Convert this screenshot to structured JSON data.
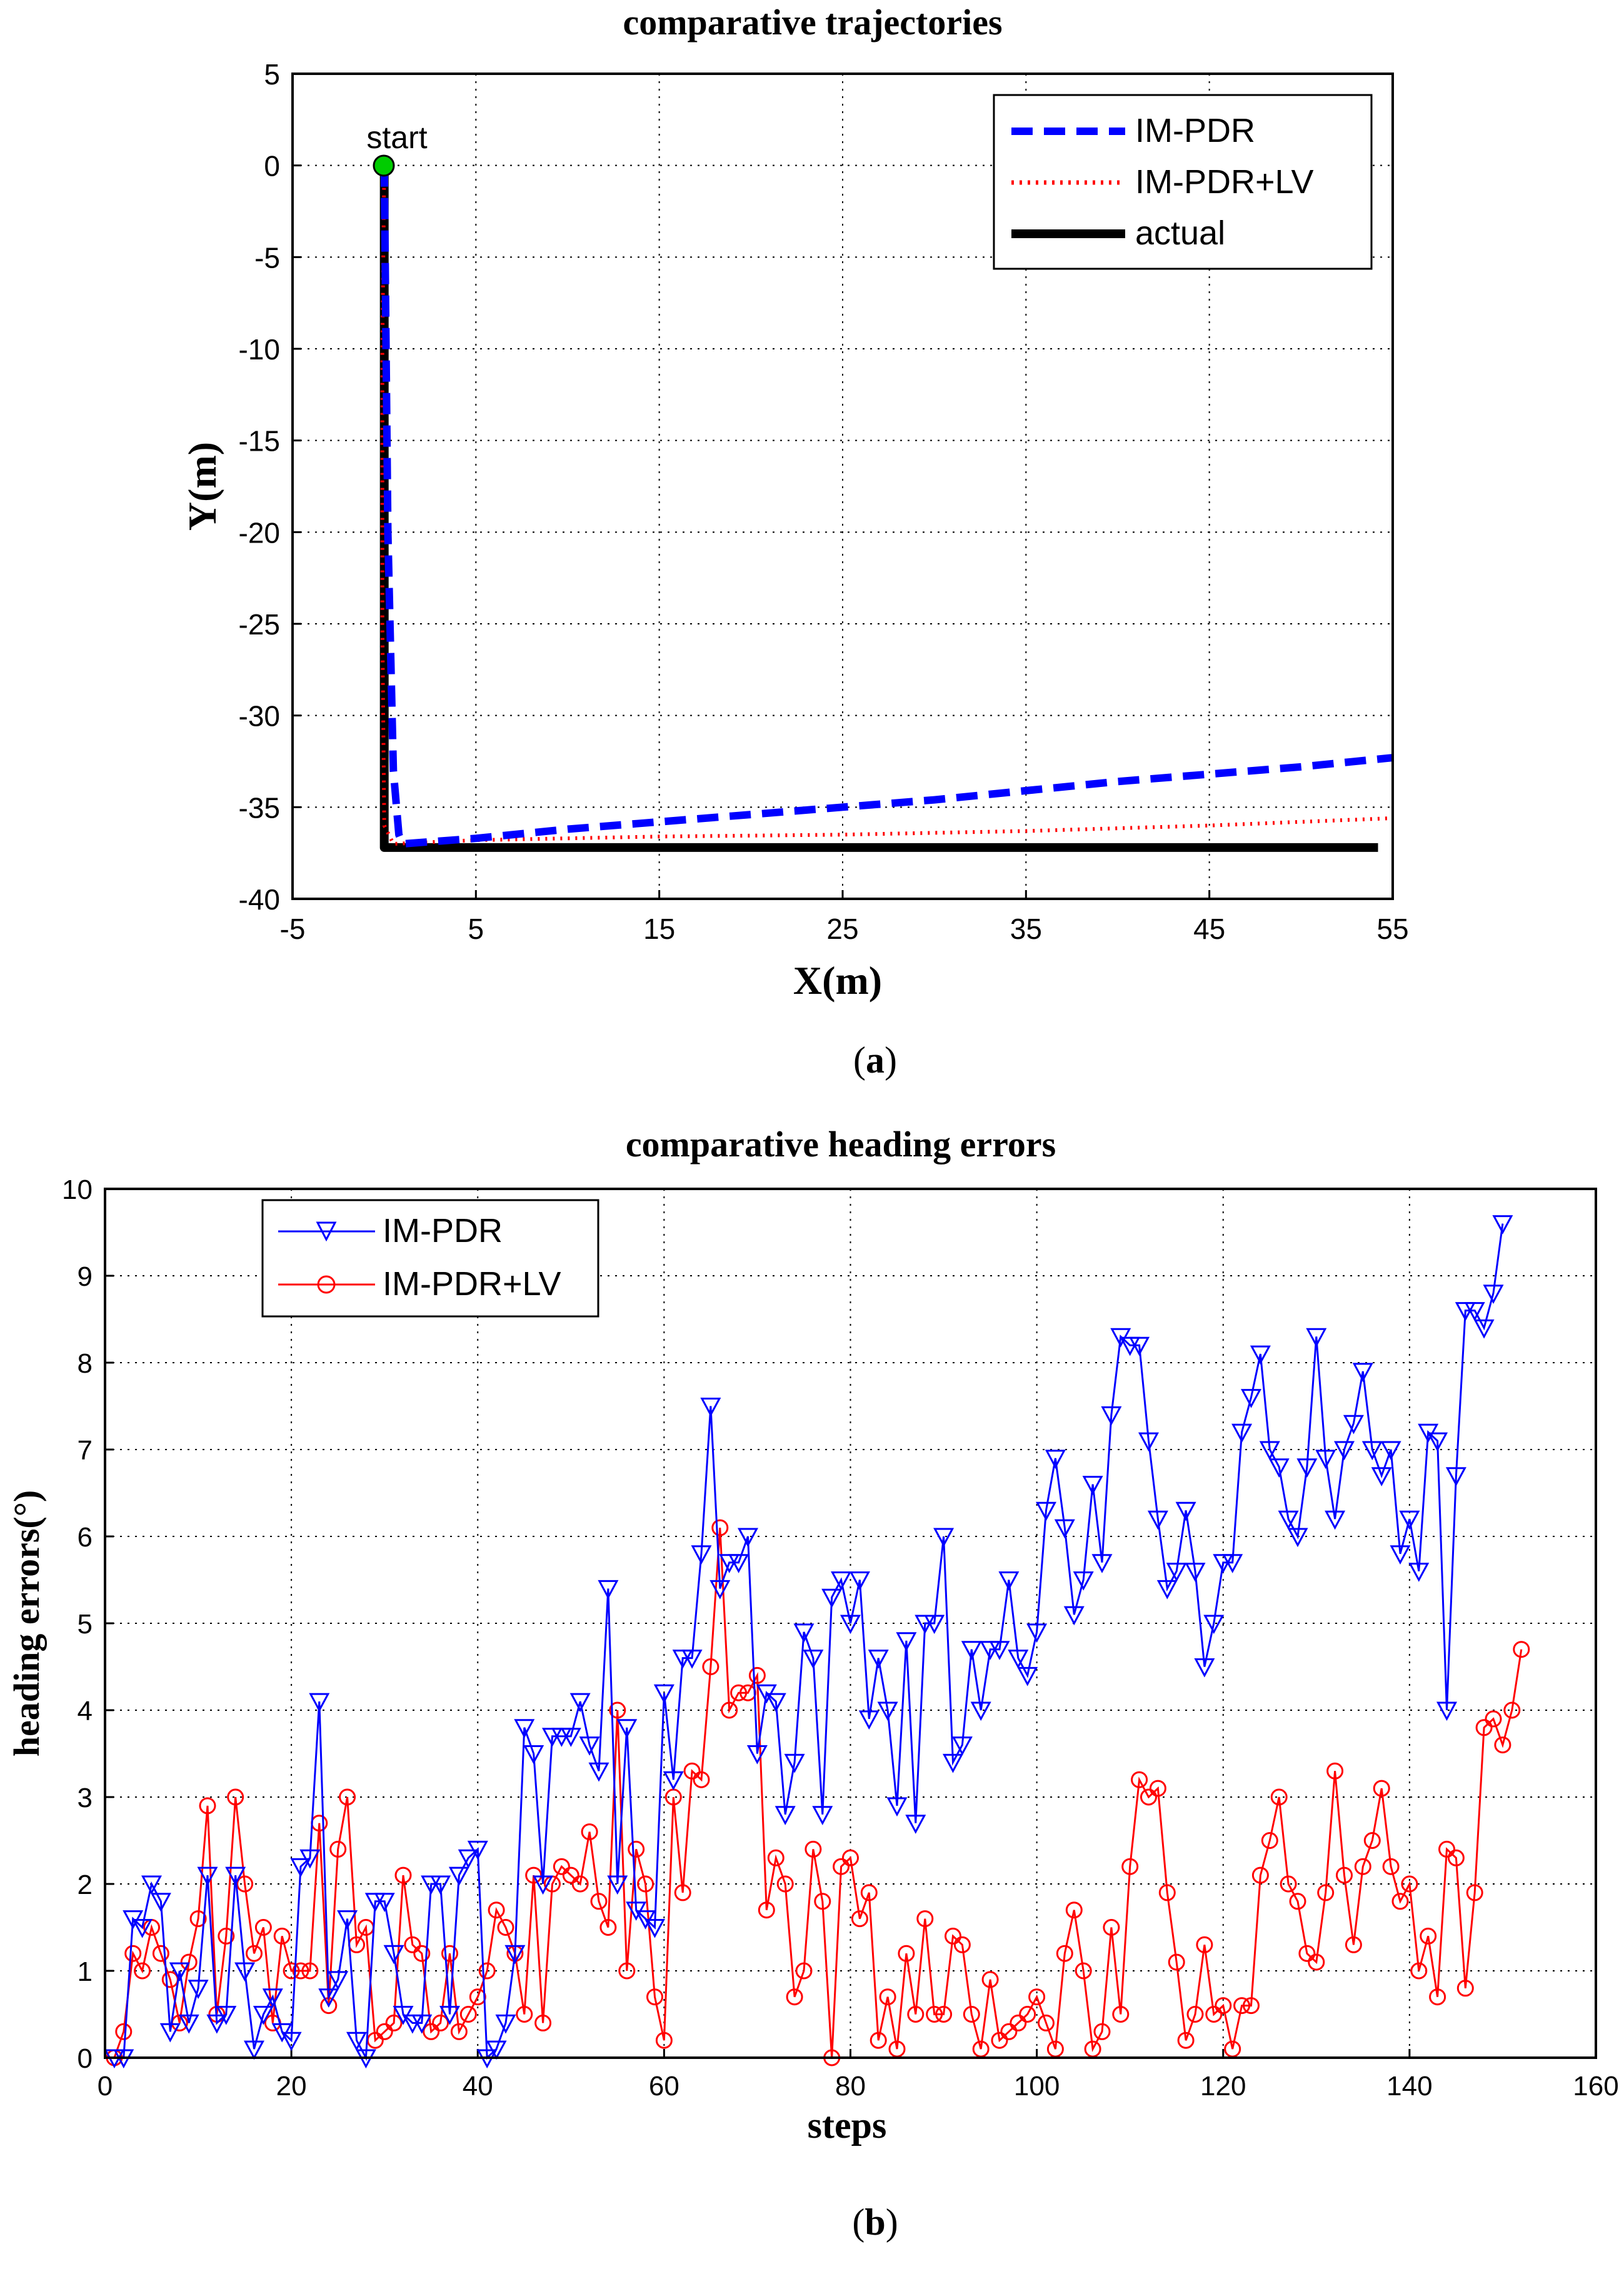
{
  "colors": {
    "series_a": "#0000ff",
    "series_b": "#ff0000",
    "actual": "#000000",
    "start_marker": "#00cc00",
    "grid": "#000000",
    "background": "#ffffff"
  },
  "panel_a": {
    "caption": "(a)",
    "caption_letter": "a"
  },
  "panel_b": {
    "caption": "(b)",
    "caption_letter": "b"
  },
  "chart_data": [
    {
      "type": "line",
      "title": "comparative trajectories",
      "xlabel": "X(m)",
      "ylabel": "Y(m)",
      "xlim": [
        -5,
        55
      ],
      "ylim": [
        -40,
        5
      ],
      "xticks": [
        -5,
        5,
        15,
        25,
        35,
        45,
        55
      ],
      "yticks": [
        5,
        0,
        -5,
        -10,
        -15,
        -20,
        -25,
        -30,
        -35,
        -40
      ],
      "xtick_labels": [
        "-5",
        "5",
        "15",
        "25",
        "35",
        "45",
        "55"
      ],
      "ytick_labels": [
        "5",
        "0",
        "-5",
        "-10",
        "-15",
        "-20",
        "-25",
        "-30",
        "-35",
        "-40"
      ],
      "grid": true,
      "legend_position": "top-right",
      "annotation": {
        "text": "start",
        "x": 0,
        "y": 0
      },
      "series": [
        {
          "name": "IM-PDR",
          "style": "dashed",
          "x": [
            0,
            0.2,
            0.5,
            0.8,
            1.0,
            5,
            10,
            15,
            20,
            25,
            30,
            35,
            40,
            45,
            50,
            55
          ],
          "y": [
            0,
            -20,
            -33,
            -36.5,
            -37,
            -36.7,
            -36.2,
            -35.8,
            -35.4,
            -35.0,
            -34.6,
            -34.1,
            -33.6,
            -33.2,
            -32.8,
            -32.3
          ]
        },
        {
          "name": "IM-PDR+LV",
          "style": "dotted",
          "x": [
            0,
            -0.1,
            -0.1,
            0,
            0.5,
            5,
            15,
            25,
            35,
            45,
            55
          ],
          "y": [
            0,
            -10,
            -25,
            -36,
            -37,
            -36.8,
            -36.6,
            -36.5,
            -36.3,
            -36.0,
            -35.6
          ]
        },
        {
          "name": "actual",
          "style": "solid",
          "x": [
            0,
            0,
            54.2
          ],
          "y": [
            0,
            -37.2,
            -37.2
          ]
        }
      ]
    },
    {
      "type": "line",
      "title": "comparative heading errors",
      "xlabel": "steps",
      "ylabel": "heading errors(°)",
      "xlim": [
        0,
        160
      ],
      "ylim": [
        0,
        10
      ],
      "xticks": [
        0,
        20,
        40,
        60,
        80,
        100,
        120,
        140,
        160
      ],
      "yticks": [
        0,
        1,
        2,
        3,
        4,
        5,
        6,
        7,
        8,
        9,
        10
      ],
      "xtick_labels": [
        "0",
        "20",
        "40",
        "60",
        "80",
        "100",
        "120",
        "140",
        "160"
      ],
      "ytick_labels": [
        "0",
        "1",
        "2",
        "3",
        "4",
        "5",
        "6",
        "7",
        "8",
        "9",
        "10"
      ],
      "grid": true,
      "legend_position": "top-left",
      "series": [
        {
          "name": "IM-PDR",
          "marker": "triangle-down",
          "values": [
            0,
            0,
            1.6,
            1.5,
            2.0,
            1.8,
            0.3,
            1.0,
            0.4,
            0.8,
            2.1,
            0.4,
            0.5,
            2.1,
            1.0,
            0.1,
            0.5,
            0.7,
            0.3,
            0.2,
            2.2,
            2.3,
            4.1,
            0.7,
            0.9,
            1.6,
            0.2,
            0.0,
            1.8,
            1.8,
            1.2,
            0.5,
            0.4,
            0.4,
            2.0,
            2.0,
            0.5,
            2.1,
            2.3,
            2.4,
            0.0,
            0.1,
            0.4,
            1.2,
            3.8,
            3.5,
            2.0,
            3.7,
            3.7,
            3.7,
            4.1,
            3.6,
            3.3,
            5.4,
            2.0,
            3.8,
            1.7,
            1.6,
            1.5,
            4.2,
            3.2,
            4.6,
            4.6,
            5.8,
            7.5,
            5.4,
            5.7,
            5.7,
            6.0,
            3.5,
            4.2,
            4.1,
            2.8,
            3.4,
            4.9,
            4.6,
            2.8,
            5.3,
            5.5,
            5.0,
            5.5,
            3.9,
            4.6,
            4.0,
            2.9,
            4.8,
            2.7,
            5.0,
            5.0,
            6.0,
            3.4,
            3.6,
            4.7,
            4.0,
            4.7,
            4.7,
            5.5,
            4.6,
            4.4,
            4.9,
            6.3,
            6.9,
            6.1,
            5.1,
            5.5,
            6.6,
            5.7,
            7.4,
            8.3,
            8.2,
            8.2,
            7.1,
            6.2,
            5.4,
            5.6,
            6.3,
            5.6,
            4.5,
            5.0,
            5.7,
            5.7,
            7.2,
            7.6,
            8.1,
            7.0,
            6.8,
            6.2,
            6.0,
            6.8,
            8.3,
            6.9,
            6.2,
            7.0,
            7.3,
            7.9,
            7.0,
            6.7,
            7.0,
            5.8,
            6.2,
            5.6,
            7.2,
            7.1,
            4.0,
            6.7,
            8.6,
            8.6,
            8.4,
            8.8,
            9.6
          ]
        },
        {
          "name": "IM-PDR+LV",
          "marker": "circle",
          "values": [
            0,
            0.3,
            1.2,
            1.0,
            1.5,
            1.2,
            0.9,
            0.4,
            1.1,
            1.6,
            2.9,
            0.5,
            1.4,
            3.0,
            2.0,
            1.2,
            1.5,
            0.4,
            1.4,
            1.0,
            1.0,
            1.0,
            2.7,
            0.6,
            2.4,
            3.0,
            1.3,
            1.5,
            0.2,
            0.3,
            0.4,
            2.1,
            1.3,
            1.2,
            0.3,
            0.4,
            1.2,
            0.3,
            0.5,
            0.7,
            1.0,
            1.7,
            1.5,
            1.2,
            0.5,
            2.1,
            0.4,
            2.0,
            2.2,
            2.1,
            2.0,
            2.6,
            1.8,
            1.5,
            4.0,
            1.0,
            2.4,
            2.0,
            0.7,
            0.2,
            3.0,
            1.9,
            3.3,
            3.2,
            4.5,
            6.1,
            4.0,
            4.2,
            4.2,
            4.4,
            1.7,
            2.3,
            2.0,
            0.7,
            1.0,
            2.4,
            1.8,
            0.0,
            2.2,
            2.3,
            1.6,
            1.9,
            0.2,
            0.7,
            0.1,
            1.2,
            0.5,
            1.6,
            0.5,
            0.5,
            1.4,
            1.3,
            0.5,
            0.1,
            0.9,
            0.2,
            0.3,
            0.4,
            0.5,
            0.7,
            0.4,
            0.1,
            1.2,
            1.7,
            1.0,
            0.1,
            0.3,
            1.5,
            0.5,
            2.2,
            3.2,
            3.0,
            3.1,
            1.9,
            1.1,
            0.2,
            0.5,
            1.3,
            0.5,
            0.6,
            0.1,
            0.6,
            0.6,
            2.1,
            2.5,
            3.0,
            2.0,
            1.8,
            1.2,
            1.1,
            1.9,
            3.3,
            2.1,
            1.3,
            2.2,
            2.5,
            3.1,
            2.2,
            1.8,
            2.0,
            1.0,
            1.4,
            0.7,
            2.4,
            2.3,
            0.8,
            1.9,
            3.8,
            3.9,
            3.6,
            4.0,
            4.7
          ]
        }
      ]
    }
  ]
}
